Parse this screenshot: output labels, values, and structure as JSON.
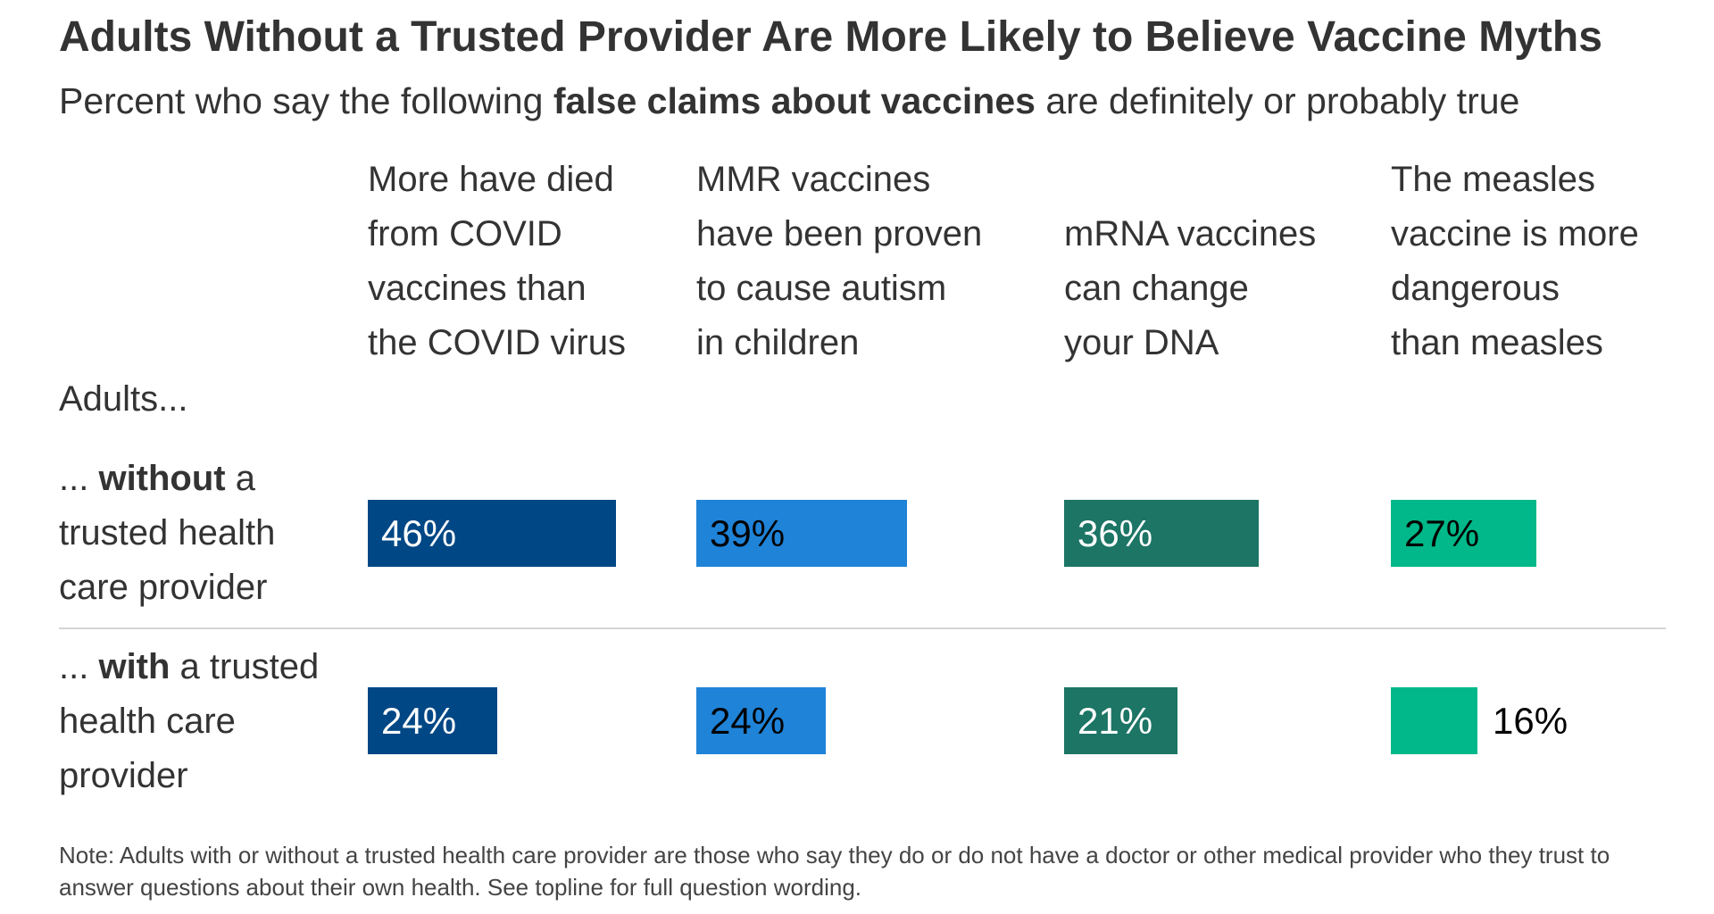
{
  "header": {
    "title": "Adults Without a Trusted Provider Are More Likely to Believe Vaccine Myths",
    "subtitle_pre": "Percent who say the following ",
    "subtitle_bold": "false claims about vaccines",
    "subtitle_post": " are definitely or probably true"
  },
  "rows_header": "Adults...",
  "rows": [
    {
      "pre": "... ",
      "bold": "without",
      "post": " a trusted health care provider"
    },
    {
      "pre": "... ",
      "bold": "with",
      "post": " a trusted health care provider"
    }
  ],
  "note": "Note: Adults with or without a trusted health care provider are those who say they do or do not have a doctor or other medical provider who they trust to answer questions about their own health. See topline for full question wording.",
  "chart_data": {
    "type": "bar",
    "orientation": "horizontal",
    "layout": "small-multiples",
    "title": "Adults Without a Trusted Provider Are More Likely to Believe Vaccine Myths",
    "subtitle": "Percent who say the following false claims about vaccines are definitely or probably true",
    "categories": [
      "... without a trusted health care provider",
      "... with a trusted health care provider"
    ],
    "unit": "%",
    "xlim": [
      0,
      100
    ],
    "grid": false,
    "series": [
      {
        "name": "More have died from COVID vaccines than the COVID virus",
        "lines": [
          "More have died",
          "from COVID",
          "vaccines than",
          "the COVID virus"
        ],
        "values": [
          46,
          24
        ],
        "labels": [
          "46%",
          "24%"
        ],
        "color": "#004785",
        "label_color": "#ffffff"
      },
      {
        "name": "MMR vaccines have been proven to cause autism in children",
        "lines": [
          "MMR vaccines",
          "have been proven",
          "to cause autism",
          "in children"
        ],
        "values": [
          39,
          24
        ],
        "labels": [
          "39%",
          "24%"
        ],
        "color": "#1f83d8",
        "label_color": "#000000"
      },
      {
        "name": "mRNA vaccines can change your DNA",
        "lines": [
          "mRNA vaccines",
          "can change",
          "your DNA"
        ],
        "values": [
          36,
          21
        ],
        "labels": [
          "36%",
          "21%"
        ],
        "color": "#1c7565",
        "label_color": "#ffffff"
      },
      {
        "name": "The measles vaccine is more dangerous than measles",
        "lines": [
          "The measles",
          "vaccine is more",
          "dangerous",
          "than measles"
        ],
        "values": [
          27,
          16
        ],
        "labels": [
          "27%",
          "16%"
        ],
        "color": "#00b889",
        "label_color": "#000000"
      }
    ]
  }
}
